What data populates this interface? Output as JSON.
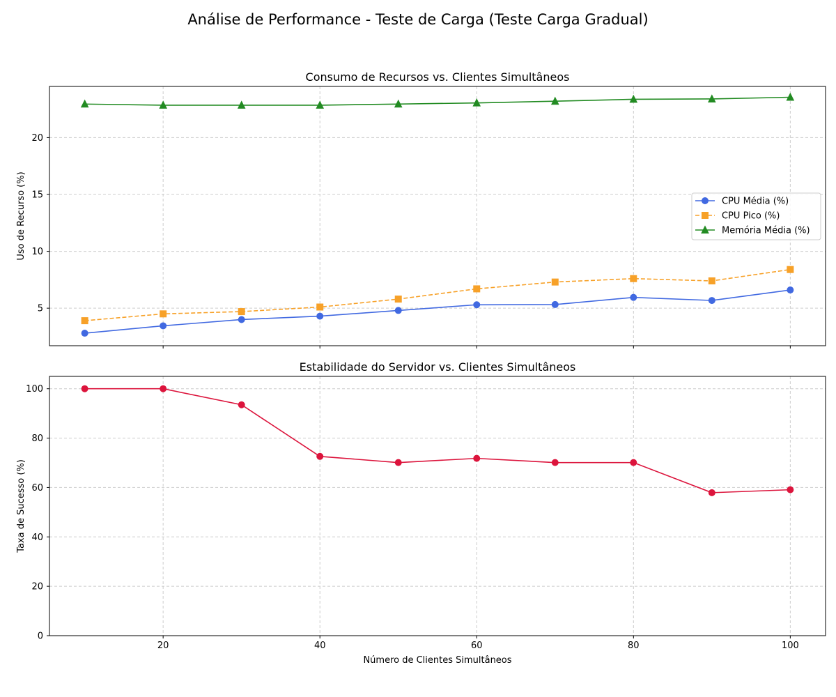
{
  "figure_title": "Análise de Performance - Teste de Carga (Teste Carga Gradual)",
  "colors": {
    "cpu_media": "#4169e1",
    "cpu_pico": "#f7a128",
    "memoria_media": "#228b22",
    "taxa_sucesso": "#dc143c",
    "grid": "#cccccc"
  },
  "chart_data": [
    {
      "type": "line",
      "title": "Consumo de Recursos vs. Clientes Simultâneos",
      "xlabel": "",
      "ylabel": "Uso de Recurso (%)",
      "x": [
        10,
        20,
        30,
        40,
        50,
        60,
        70,
        80,
        90,
        100
      ],
      "xlim": [
        5.5,
        104.5
      ],
      "ylim": [
        1.7,
        24.5
      ],
      "xticks": [
        20,
        40,
        60,
        80,
        100
      ],
      "yticks": [
        5,
        10,
        15,
        20
      ],
      "show_xtick_labels": false,
      "grid": true,
      "legend_position": "center-right",
      "series": [
        {
          "name": "CPU Média (%)",
          "values": [
            2.8,
            3.45,
            4.0,
            4.3,
            4.8,
            5.3,
            5.32,
            5.95,
            5.68,
            6.6
          ],
          "color_key": "cpu_media",
          "marker": "circle",
          "dash": false
        },
        {
          "name": "CPU Pico (%)",
          "values": [
            3.9,
            4.5,
            4.7,
            5.1,
            5.8,
            6.7,
            7.3,
            7.6,
            7.4,
            8.4
          ],
          "color_key": "cpu_pico",
          "marker": "square",
          "dash": true
        },
        {
          "name": "Memória Média (%)",
          "values": [
            22.95,
            22.85,
            22.85,
            22.85,
            22.95,
            23.05,
            23.2,
            23.37,
            23.4,
            23.55
          ],
          "color_key": "memoria_media",
          "marker": "triangle",
          "dash": false
        }
      ]
    },
    {
      "type": "line",
      "title": "Estabilidade do Servidor vs. Clientes Simultâneos",
      "xlabel": "Número de Clientes Simultâneos",
      "ylabel": "Taxa de Sucesso (%)",
      "x": [
        10,
        20,
        30,
        40,
        50,
        60,
        70,
        80,
        90,
        100
      ],
      "xlim": [
        5.5,
        104.5
      ],
      "ylim": [
        0,
        105
      ],
      "xticks": [
        20,
        40,
        60,
        80,
        100
      ],
      "yticks": [
        0,
        20,
        40,
        60,
        80,
        100
      ],
      "show_xtick_labels": true,
      "grid": true,
      "series": [
        {
          "values": [
            100,
            100,
            93.5,
            72.6,
            70.1,
            71.8,
            70.1,
            70.1,
            57.9,
            59.1
          ],
          "color_key": "taxa_sucesso",
          "marker": "circle",
          "dash": false
        }
      ]
    }
  ]
}
